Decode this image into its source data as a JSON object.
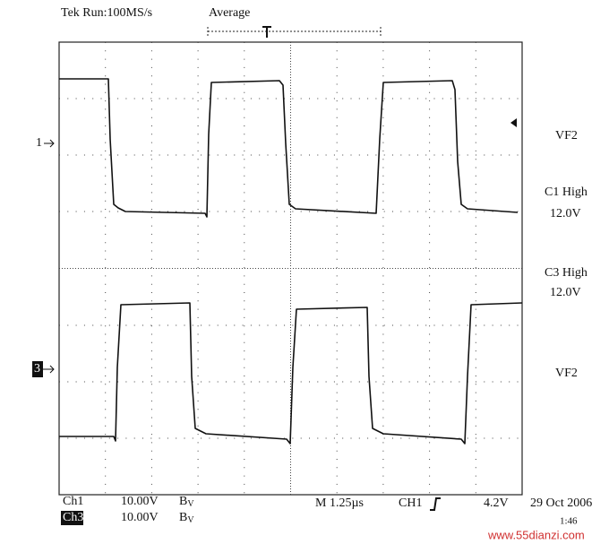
{
  "header": {
    "status": "Tek Run:100MS/s",
    "mode": "Average"
  },
  "markers": {
    "ch1": "1",
    "ch3": "3"
  },
  "right_labels": {
    "top_name": "VF2",
    "trig_c1": "C1 High",
    "trig_c1_level": "12.0V",
    "trig_c3": "C3 High",
    "trig_c3_level": "12.0V",
    "bottom_name": "VF2"
  },
  "footer": {
    "ch1": "Ch1",
    "ch1_scale": "10.00V",
    "ch1_bw": "B",
    "ch1_bw_sub": "V",
    "ch3": "Ch3",
    "ch3_scale": "10.00V",
    "ch3_bw": "B",
    "ch3_bw_sub": "V",
    "timebase": "M 1.25µs",
    "trigger_source": "CH1",
    "trigger_level": "4.2V",
    "date": "29 Oct 2006",
    "time": "1:46"
  },
  "watermark": "www.55dianzi.com"
}
